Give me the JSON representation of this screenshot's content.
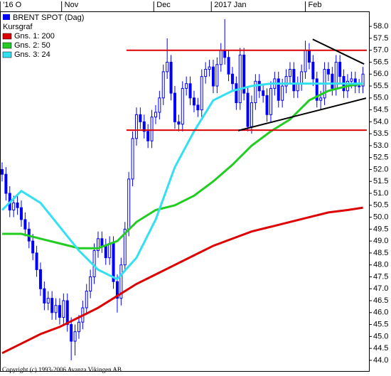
{
  "chart_data": {
    "type": "candlestick",
    "name": "BRENT SPOT (Dag)",
    "color": "#0000ff",
    "legend_title": "Kursgraf",
    "copyright": "Copyright (c) 1993-2006 Avanza Vikingen AB",
    "xlim": [
      -0.55,
      95.75
    ],
    "xticks": [
      {
        "value": -0.5,
        "label": "'16 O"
      },
      {
        "value": 15.5,
        "label": "Nov"
      },
      {
        "value": 39.5,
        "label": "Dec"
      },
      {
        "value": 54.5,
        "label": "2017 Jan"
      },
      {
        "value": 79,
        "label": "Feb"
      }
    ],
    "ylim": [
      43.55,
      58.63
    ],
    "yticks": [
      {
        "value": 44,
        "label": "44.0"
      },
      44.5,
      {
        "value": 45,
        "label": "45.0"
      },
      45.5,
      {
        "value": 46,
        "label": "46.0"
      },
      46.5,
      {
        "value": 47,
        "label": "47.0"
      },
      47.5,
      {
        "value": 48,
        "label": "48.0"
      },
      48.5,
      {
        "value": 49,
        "label": "49.0"
      },
      49.5,
      {
        "value": 50,
        "label": "50.0"
      },
      50.5,
      {
        "value": 51,
        "label": "51.0"
      },
      51.5,
      {
        "value": 52,
        "label": "52.0"
      },
      52.5,
      {
        "value": 53,
        "label": "53.0"
      },
      53.5,
      {
        "value": 54,
        "label": "54.0"
      },
      54.5,
      {
        "value": 55,
        "label": "55.0"
      },
      55.5,
      {
        "value": 56,
        "label": "56.0"
      },
      56.5,
      {
        "value": 57,
        "label": "57.0"
      },
      57.5,
      {
        "value": 58,
        "label": "58.0"
      }
    ],
    "x": [
      0,
      1,
      2,
      3,
      4,
      5,
      6,
      7,
      8,
      9,
      10,
      11,
      12,
      13,
      14,
      15,
      16,
      17,
      18,
      19,
      20,
      21,
      22,
      23,
      24,
      25,
      26,
      27,
      28,
      29,
      30,
      31,
      32,
      33,
      34,
      35,
      36,
      37,
      38,
      39,
      40,
      41,
      42,
      43,
      44,
      45,
      46,
      47,
      48,
      49,
      50,
      51,
      52,
      53,
      54,
      55,
      56,
      57,
      58,
      59,
      60,
      61,
      62,
      63,
      64,
      65,
      66,
      67,
      68,
      69,
      70,
      71,
      72,
      73,
      74,
      75,
      76,
      77,
      78,
      79,
      80,
      81,
      82,
      83,
      84,
      85,
      86,
      87,
      88,
      89,
      90,
      91,
      92,
      93,
      94
    ],
    "open": [
      52.0,
      51.8,
      51.0,
      50.3,
      50.6,
      50.4,
      49.9,
      49.5,
      49.0,
      48.5,
      47.8,
      47.0,
      46.4,
      46.6,
      46.0,
      46.3,
      45.8,
      46.5,
      45.5,
      44.8,
      45.2,
      45.6,
      46.2,
      46.9,
      47.5,
      48.6,
      49.1,
      48.8,
      48.3,
      48.9,
      47.3,
      46.6,
      48.0,
      49.5,
      51.6,
      53.3,
      54.3,
      54.0,
      53.6,
      53.2,
      54.2,
      54.4,
      55.0,
      56.1,
      56.5,
      55.2,
      54.0,
      53.9,
      55.4,
      55.6,
      55.0,
      54.7,
      54.5,
      55.9,
      56.2,
      56.3,
      55.5,
      56.4,
      57.0,
      56.7,
      56.0,
      55.6,
      54.8,
      56.8,
      55.2,
      53.8,
      54.8,
      55.7,
      55.3,
      55.1,
      54.3,
      55.4,
      55.8,
      54.9,
      55.5,
      55.9,
      56.2,
      55.3,
      55.6,
      56.1,
      57.0,
      56.5,
      55.8,
      54.9,
      55.0,
      56.2,
      56.0,
      55.4,
      56.5,
      55.9,
      55.3,
      55.7,
      55.8,
      55.5,
      55.5
    ],
    "high": [
      52.3,
      52.1,
      51.3,
      50.9,
      50.9,
      50.7,
      50.2,
      49.8,
      49.3,
      48.8,
      48.1,
      47.3,
      46.9,
      46.9,
      46.6,
      46.6,
      46.8,
      46.8,
      45.8,
      45.5,
      45.9,
      46.5,
      47.2,
      47.8,
      48.9,
      49.4,
      49.4,
      49.1,
      49.2,
      49.2,
      47.6,
      48.3,
      49.8,
      51.9,
      53.6,
      54.6,
      54.6,
      54.3,
      53.9,
      54.5,
      54.7,
      55.3,
      56.4,
      57.5,
      56.8,
      55.5,
      54.3,
      55.7,
      55.9,
      55.9,
      55.3,
      55.0,
      56.2,
      56.5,
      56.6,
      56.6,
      56.7,
      57.3,
      58.3,
      57.0,
      56.3,
      55.9,
      57.1,
      57.1,
      55.5,
      55.1,
      56.0,
      56.0,
      55.6,
      55.4,
      55.7,
      56.1,
      56.1,
      55.8,
      56.2,
      56.5,
      56.5,
      55.9,
      56.4,
      57.4,
      57.3,
      56.8,
      56.1,
      55.3,
      56.5,
      56.5,
      56.3,
      56.8,
      56.8,
      56.2,
      56.0,
      56.1,
      56.1,
      55.8,
      56.3
    ],
    "low": [
      51.5,
      50.7,
      50.0,
      50.0,
      50.1,
      49.6,
      49.2,
      48.7,
      48.2,
      47.5,
      46.7,
      46.1,
      46.1,
      45.7,
      45.7,
      45.5,
      45.5,
      45.2,
      44.0,
      44.2,
      44.9,
      45.3,
      45.9,
      46.6,
      47.2,
      48.3,
      48.5,
      48.0,
      48.0,
      47.0,
      46.0,
      46.3,
      47.7,
      49.2,
      51.3,
      53.0,
      53.7,
      53.3,
      52.9,
      52.9,
      53.9,
      54.1,
      54.7,
      55.8,
      54.9,
      53.7,
      53.6,
      53.6,
      55.1,
      54.7,
      54.4,
      54.2,
      54.2,
      55.6,
      55.9,
      55.2,
      55.2,
      56.1,
      56.4,
      55.7,
      55.3,
      54.5,
      54.5,
      54.9,
      53.6,
      53.5,
      54.5,
      55.0,
      54.8,
      54.0,
      54.0,
      55.1,
      54.6,
      54.6,
      55.2,
      55.6,
      55.0,
      55.0,
      55.3,
      55.8,
      56.2,
      55.5,
      54.6,
      54.5,
      54.7,
      55.7,
      55.1,
      55.1,
      55.6,
      55.0,
      55.0,
      55.4,
      55.2,
      55.2,
      55.2
    ],
    "close": [
      51.8,
      51.0,
      50.3,
      50.6,
      50.4,
      49.9,
      49.5,
      49.0,
      48.5,
      47.8,
      47.0,
      46.4,
      46.6,
      46.0,
      46.3,
      45.8,
      46.5,
      45.5,
      44.8,
      45.2,
      45.6,
      46.2,
      46.9,
      47.5,
      48.6,
      49.1,
      48.8,
      48.3,
      48.9,
      47.3,
      46.6,
      48.0,
      49.5,
      51.6,
      53.3,
      54.3,
      54.0,
      53.6,
      53.2,
      54.2,
      54.4,
      55.0,
      56.1,
      56.5,
      55.2,
      54.0,
      53.9,
      55.4,
      55.6,
      55.0,
      54.7,
      54.5,
      55.9,
      56.2,
      56.3,
      55.5,
      56.4,
      57.0,
      56.7,
      56.0,
      55.6,
      54.8,
      56.8,
      55.2,
      53.8,
      54.8,
      55.7,
      55.3,
      55.1,
      54.3,
      55.4,
      55.8,
      54.9,
      55.5,
      55.9,
      56.2,
      55.3,
      55.6,
      56.1,
      57.0,
      56.5,
      55.8,
      54.9,
      55.0,
      56.2,
      56.0,
      55.4,
      56.5,
      55.9,
      55.3,
      55.7,
      55.8,
      55.5,
      55.5,
      56.0
    ],
    "series": [
      {
        "name": "Gns. 1: 200",
        "color": "#dd0000",
        "x": [
          0,
          5,
          10,
          15,
          20,
          25,
          30,
          35,
          40,
          45,
          50,
          55,
          60,
          65,
          70,
          75,
          80,
          85,
          90,
          94
        ],
        "values": [
          44.3,
          44.7,
          45.1,
          45.4,
          45.8,
          46.2,
          46.7,
          47.2,
          47.6,
          48.0,
          48.4,
          48.8,
          49.1,
          49.4,
          49.6,
          49.8,
          50.0,
          50.2,
          50.3,
          50.4
        ]
      },
      {
        "name": "Gns. 2: 50",
        "color": "#22cc22",
        "x": [
          0,
          5,
          10,
          15,
          20,
          25,
          30,
          35,
          40,
          45,
          50,
          55,
          60,
          65,
          70,
          75,
          80,
          85,
          90,
          94
        ],
        "values": [
          49.3,
          49.3,
          49.1,
          48.9,
          48.7,
          48.7,
          49.0,
          49.8,
          50.3,
          50.5,
          50.9,
          51.5,
          52.2,
          53.0,
          53.6,
          54.1,
          54.9,
          55.3,
          55.5,
          55.6
        ]
      },
      {
        "name": "Gns. 3: 24",
        "color": "#33e0f0",
        "x": [
          0,
          5,
          10,
          15,
          20,
          25,
          30,
          35,
          40,
          45,
          50,
          55,
          60,
          65,
          70,
          75,
          80,
          85,
          90,
          94
        ],
        "values": [
          50.3,
          51.1,
          50.6,
          49.6,
          48.6,
          47.8,
          47.4,
          48.3,
          49.9,
          52.1,
          53.6,
          54.9,
          55.3,
          55.5,
          55.6,
          55.6,
          55.6,
          55.6,
          55.6,
          55.6
        ]
      }
    ],
    "trend_lines": [
      {
        "color": "#dd0000",
        "x": [
          32.4,
          95
        ],
        "y": [
          57.0,
          57.0
        ]
      },
      {
        "color": "#dd0000",
        "x": [
          32.4,
          95
        ],
        "y": [
          53.65,
          53.65
        ]
      },
      {
        "color": "#000000",
        "x": [
          61.5,
          94.8
        ],
        "y": [
          53.63,
          54.99
        ]
      },
      {
        "color": "#000000",
        "x": [
          80.9,
          94.3
        ],
        "y": [
          57.46,
          56.42
        ]
      }
    ]
  }
}
